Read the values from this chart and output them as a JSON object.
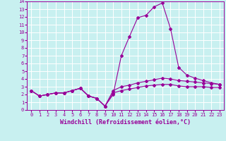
{
  "x_values": [
    0,
    1,
    2,
    3,
    4,
    5,
    6,
    7,
    8,
    9,
    10,
    11,
    12,
    13,
    14,
    15,
    16,
    17,
    18,
    19,
    20,
    21,
    22,
    23
  ],
  "line1": [
    2.5,
    1.8,
    2.0,
    2.2,
    2.2,
    2.5,
    2.8,
    1.8,
    1.5,
    0.5,
    2.0,
    7.0,
    9.5,
    11.9,
    12.2,
    13.3,
    13.8,
    10.5,
    5.5,
    4.5,
    4.1,
    3.8,
    3.5,
    3.3
  ],
  "line2": [
    2.5,
    1.8,
    2.0,
    2.2,
    2.2,
    2.5,
    2.8,
    1.8,
    1.5,
    0.5,
    2.5,
    3.0,
    3.2,
    3.5,
    3.7,
    3.9,
    4.1,
    4.0,
    3.8,
    3.7,
    3.6,
    3.5,
    3.4,
    3.3
  ],
  "line3": [
    2.5,
    1.8,
    2.0,
    2.2,
    2.2,
    2.5,
    2.8,
    1.8,
    1.5,
    0.5,
    2.2,
    2.5,
    2.7,
    2.9,
    3.1,
    3.2,
    3.3,
    3.3,
    3.1,
    3.0,
    3.0,
    3.0,
    2.9,
    2.9
  ],
  "line_color": "#990099",
  "bg_color": "#c8f0f0",
  "grid_color": "#ffffff",
  "xlabel": "Windchill (Refroidissement éolien,°C)",
  "ylim": [
    0,
    14
  ],
  "xlim": [
    -0.5,
    23.5
  ],
  "yticks": [
    0,
    1,
    2,
    3,
    4,
    5,
    6,
    7,
    8,
    9,
    10,
    11,
    12,
    13,
    14
  ],
  "xticks": [
    0,
    1,
    2,
    3,
    4,
    5,
    6,
    7,
    8,
    9,
    10,
    11,
    12,
    13,
    14,
    15,
    16,
    17,
    18,
    19,
    20,
    21,
    22,
    23
  ],
  "tick_fontsize": 5.0,
  "label_fontsize": 6.0,
  "marker_size": 2.0,
  "line_width": 0.8
}
